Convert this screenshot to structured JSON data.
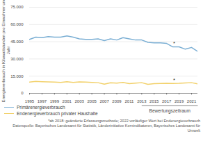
{
  "chart_data": {
    "type": "line",
    "y_label": "Energieverbrauch in Kilowattstunden pro Einwohner und Jahr",
    "x": [
      1995,
      1996,
      1997,
      1998,
      1999,
      2000,
      2001,
      2002,
      2003,
      2004,
      2005,
      2006,
      2007,
      2008,
      2009,
      2010,
      2011,
      2012,
      2013,
      2014,
      2015,
      2016,
      2017,
      2018,
      2019,
      2020,
      2021,
      2022
    ],
    "series": [
      {
        "name": "Primärenergieverbrauch",
        "color": "#7bafd4",
        "values": [
          47000,
          49000,
          48500,
          49500,
          49000,
          49000,
          50000,
          49000,
          47500,
          47000,
          47000,
          47500,
          46000,
          47500,
          46500,
          48500,
          47500,
          46500,
          46500,
          44500,
          44000,
          44000,
          43500,
          40500,
          40500,
          38500,
          40000,
          36500
        ]
      },
      {
        "name": "Endenergieverbrauch privater Haushalte",
        "color": "#f2d16b",
        "values": [
          9800,
          10500,
          10200,
          10000,
          9800,
          9500,
          10200,
          9500,
          10000,
          9800,
          9600,
          9300,
          8000,
          9200,
          8900,
          9500,
          8500,
          8900,
          9300,
          7900,
          8400,
          8600,
          8700,
          8600,
          8700,
          9000,
          9300,
          8300
        ]
      }
    ],
    "xlim": [
      1995,
      2022
    ],
    "xticks": [
      1995,
      1997,
      1999,
      2001,
      2003,
      2005,
      2007,
      2009,
      2011,
      2013,
      2015,
      2017,
      2019,
      2021
    ],
    "ylim": [
      0,
      75000
    ],
    "yticks": [
      0,
      {
        "value": 15000,
        "label": "15.000"
      },
      {
        "value": 30000,
        "label": "30.000"
      },
      {
        "value": 45000,
        "label": "45.000"
      },
      {
        "value": 60000,
        "label": "60.000"
      },
      {
        "value": 75000,
        "label": "75.000"
      }
    ],
    "grid": true,
    "legend": "bottom-left",
    "annotations": [
      {
        "text": "*",
        "x": 2018,
        "series": "Primärenergieverbrauch"
      },
      {
        "text": "*",
        "x": 2018,
        "series": "Endenergieverbrauch privater Haushalte"
      },
      {
        "text": "Bewertungszeitraum",
        "x_start": 2013,
        "x_end": 2022
      }
    ],
    "caption": [
      "*ab 2018: geänderte Erfassungsmethode; 2022 vorläufiger Wert bei Endenergieverbrauch",
      "Datenquelle: Bayerisches Landesamt für Statistik, Länderinitiative Kernindikatoren, Bayerisches Landesamt für Umwelt"
    ]
  }
}
